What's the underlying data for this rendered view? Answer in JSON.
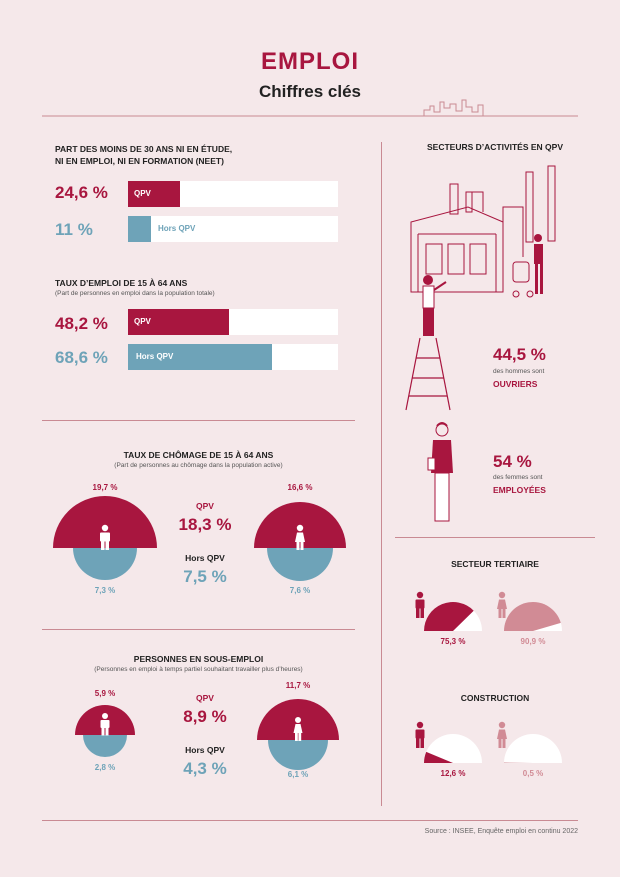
{
  "header": {
    "title": "EMPLOI",
    "subtitle": "Chiffres clés"
  },
  "colors": {
    "qpv": "#a8163f",
    "hors_qpv": "#6ea3b8",
    "pink": "#d18b95"
  },
  "neet": {
    "title_line1": "PART DES MOINS DE 30 ANS NI EN ÉTUDE,",
    "title_line2": "NI EN EMPLOI, NI EN FORMATION (NEET)",
    "qpv_value": "24,6 %",
    "qpv_label": "QPV",
    "qpv_fraction": 0.246,
    "hors_value": "11 %",
    "hors_label": "Hors QPV",
    "hors_fraction": 0.11
  },
  "emploi": {
    "title": "TAUX D’EMPLOI DE 15 À 64 ANS",
    "note": "(Part de personnes en emploi dans la population totale)",
    "qpv_value": "48,2 %",
    "qpv_label": "QPV",
    "qpv_fraction": 0.482,
    "hors_value": "68,6 %",
    "hors_label": "Hors QPV",
    "hors_fraction": 0.686
  },
  "chomage": {
    "title": "TAUX DE CHÔMAGE DE 15 À 64 ANS",
    "note": "(Part de personnes au chômage dans la population active)",
    "men_qpv": "19,7 %",
    "men_hors": "7,3 %",
    "women_qpv": "16,6 %",
    "women_hors": "7,6 %",
    "qpv_label": "QPV",
    "qpv_value": "18,3 %",
    "hors_label": "Hors QPV",
    "hors_value": "7,5 %"
  },
  "sous_emploi": {
    "title": "PERSONNES EN SOUS-EMPLOI",
    "note": "(Personnes en emploi à temps partiel souhaitant travailler plus d’heures)",
    "men_qpv": "5,9 %",
    "men_hors": "2,8 %",
    "women_qpv": "11,7 %",
    "women_hors": "6,1 %",
    "qpv_label": "QPV",
    "qpv_value": "8,9 %",
    "hors_label": "Hors QPV",
    "hors_value": "4,3 %"
  },
  "secteurs": {
    "title": "SECTEURS D’ACTIVITÉS EN QPV",
    "men_value": "44,5 %",
    "men_line": "des hommes sont",
    "men_role": "OUVRIERS",
    "women_value": "54 %",
    "women_line": "des femmes sont",
    "women_role": "EMPLOYÉES"
  },
  "tertiaire": {
    "title": "SECTEUR TERTIAIRE",
    "men_value": "75,3 %",
    "men_fraction": 0.753,
    "women_value": "90,9 %",
    "women_fraction": 0.909
  },
  "construction": {
    "title": "CONSTRUCTION",
    "men_value": "12,6 %",
    "men_fraction": 0.126,
    "women_value": "0,5 %",
    "women_fraction": 0.005
  },
  "source": "Source : INSEE, Enquête emploi en continu 2022"
}
